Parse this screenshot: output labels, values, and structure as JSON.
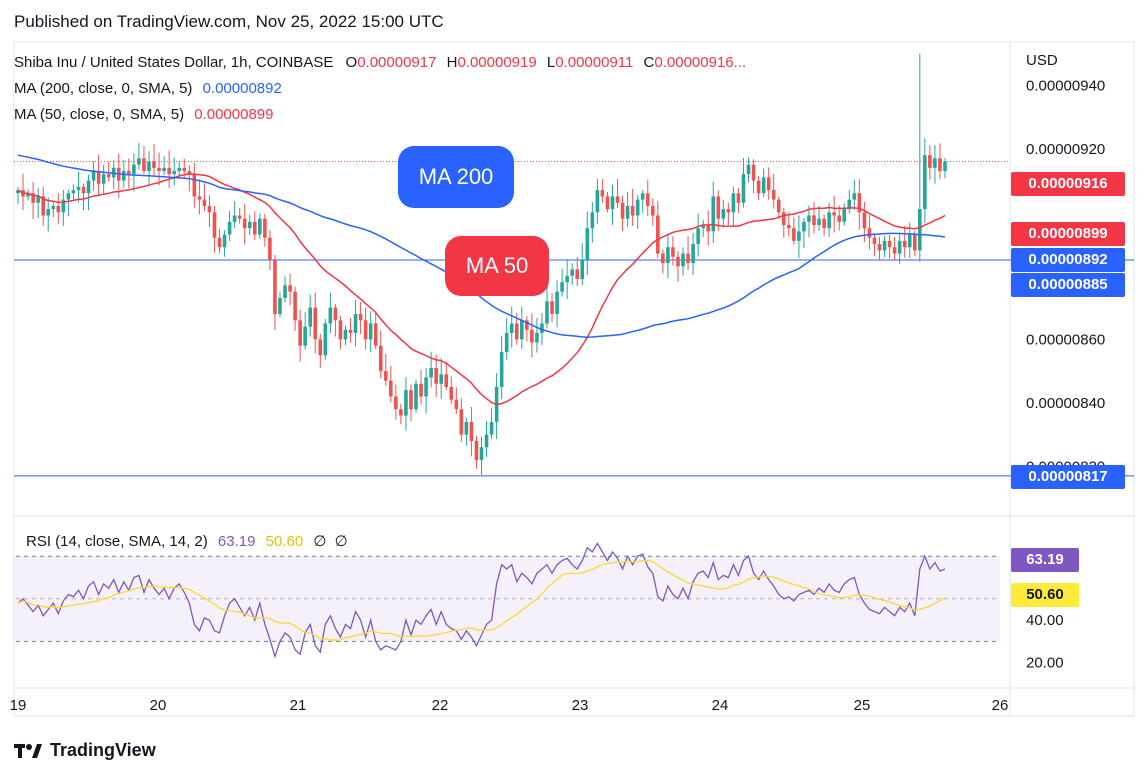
{
  "header": {
    "published": "Published on TradingView.com, Nov 25, 2022 15:00 UTC"
  },
  "legend": {
    "symbol": "Shiba Inu / United States Dollar, 1h, COINBASE",
    "o_label": "O",
    "o_value": "0.00000917",
    "h_label": "H",
    "h_value": "0.00000919",
    "l_label": "L",
    "l_value": "0.00000911",
    "c_label": "C",
    "c_value": "0.00000916...",
    "ma200_label": "MA (200, close, 0, SMA, 5)",
    "ma200_value": "0.00000892",
    "ma50_label": "MA (50, close, 0, SMA, 5)",
    "ma50_value": "0.00000899"
  },
  "rsi_legend": {
    "label": "RSI (14, close, SMA, 14, 2)",
    "rsi_value": "63.19",
    "rsi_ma_value": "50.60",
    "empty1": "∅",
    "empty2": "∅"
  },
  "axis": {
    "currency": "USD",
    "price_ticks": [
      "0.00000940",
      "0.00000920",
      "0.00000860",
      "0.00000840",
      "0.00000820"
    ],
    "rsi_ticks": [
      "40.00",
      "20.00"
    ],
    "x_ticks": [
      "19",
      "20",
      "21",
      "22",
      "23",
      "24",
      "25",
      "26"
    ]
  },
  "price_tags": {
    "current": "0.00000916",
    "ma50": "0.00000899",
    "ma200": "0.00000892",
    "hline_upper": "0.00000885",
    "hline_lower": "0.00000817"
  },
  "rsi_tags": {
    "rsi": "63.19",
    "rsi_ma": "50.60"
  },
  "annotations": {
    "ma200": "MA 200",
    "ma50": "MA 50"
  },
  "brand": {
    "name": "TradingView"
  },
  "colors": {
    "up": "#26a69a",
    "down": "#ef5350",
    "ma200": "#2962ff",
    "ma50": "#f23645",
    "rsi": "#7e57c2",
    "rsi_ma": "#fdd835",
    "hline": "#2962ff"
  },
  "chart_data": {
    "type": "candlestick",
    "symbol": "SHIBUSD",
    "timeframe": "1h",
    "x_ticks": [
      "19",
      "20",
      "21",
      "22",
      "23",
      "24",
      "25",
      "26"
    ],
    "ylim": [
      8.05e-06,
      9.53e-06
    ],
    "close": [
      9.07e-06,
      9.05e-06,
      9.06e-06,
      9.03e-06,
      9.05e-06,
      8.99e-06,
      9.01e-06,
      9.02e-06,
      9e-06,
      9.04e-06,
      9.06e-06,
      9.07e-06,
      9.08e-06,
      9.06e-06,
      9.1e-06,
      9.13e-06,
      9.09e-06,
      9.12e-06,
      9.11e-06,
      9.14e-06,
      9.1e-06,
      9.13e-06,
      9.12e-06,
      9.15e-06,
      9.17e-06,
      9.13e-06,
      9.16e-06,
      9.14e-06,
      9.13e-06,
      9.14e-06,
      9.12e-06,
      9.13e-06,
      9.14e-06,
      9.13e-06,
      9.12e-06,
      9.05e-06,
      9.04e-06,
      9.02e-06,
      9e-06,
      8.92e-06,
      8.89e-06,
      8.93e-06,
      8.97e-06,
      8.99e-06,
      8.98e-06,
      8.95e-06,
      8.97e-06,
      8.93e-06,
      8.98e-06,
      8.92e-06,
      8.85e-06,
      8.68e-06,
      8.73e-06,
      8.77e-06,
      8.75e-06,
      8.66e-06,
      8.58e-06,
      8.64e-06,
      8.7e-06,
      8.6e-06,
      8.55e-06,
      8.65e-06,
      8.7e-06,
      8.66e-06,
      8.6e-06,
      8.63e-06,
      8.62e-06,
      8.68e-06,
      8.66e-06,
      8.6e-06,
      8.65e-06,
      8.58e-06,
      8.5e-06,
      8.47e-06,
      8.42e-06,
      8.38e-06,
      8.36e-06,
      8.44e-06,
      8.38e-06,
      8.46e-06,
      8.42e-06,
      8.48e-06,
      8.51e-06,
      8.46e-06,
      8.49e-06,
      8.45e-06,
      8.41e-06,
      8.38e-06,
      8.3e-06,
      8.34e-06,
      8.28e-06,
      8.22e-06,
      8.26e-06,
      8.3e-06,
      8.34e-06,
      8.45e-06,
      8.56e-06,
      8.62e-06,
      8.65e-06,
      8.6e-06,
      8.66e-06,
      8.63e-06,
      8.59e-06,
      8.62e-06,
      8.65e-06,
      8.72e-06,
      8.68e-06,
      8.75e-06,
      8.78e-06,
      8.8e-06,
      8.82e-06,
      8.79e-06,
      8.85e-06,
      8.95e-06,
      9e-06,
      9.07e-06,
      9.05e-06,
      9.01e-06,
      9.05e-06,
      9.03e-06,
      8.98e-06,
      9.02e-06,
      8.99e-06,
      9.04e-06,
      9.06e-06,
      9.02e-06,
      8.99e-06,
      8.87e-06,
      8.84e-06,
      8.89e-06,
      8.86e-06,
      8.83e-06,
      8.87e-06,
      8.84e-06,
      8.9e-06,
      8.95e-06,
      8.96e-06,
      8.94e-06,
      9.05e-06,
      8.98e-06,
      9.01e-06,
      9e-06,
      9.06e-06,
      9.03e-06,
      9.12e-06,
      9.15e-06,
      9.1e-06,
      9.06e-06,
      9.11e-06,
      9.07e-06,
      9.04e-06,
      9e-06,
      8.96e-06,
      8.95e-06,
      8.91e-06,
      8.94e-06,
      8.97e-06,
      8.99e-06,
      8.96e-06,
      8.98e-06,
      8.95e-06,
      9e-06,
      8.99e-06,
      8.97e-06,
      9.01e-06,
      9.04e-06,
      9.06e-06,
      9e-06,
      8.95e-06,
      8.92e-06,
      8.9e-06,
      8.88e-06,
      8.91e-06,
      8.89e-06,
      8.87e-06,
      8.91e-06,
      8.89e-06,
      8.93e-06,
      8.88e-06,
      9.01e-06,
      9.18e-06,
      9.14e-06,
      9.17e-06,
      9.13e-06,
      9.16e-06
    ],
    "rsi": [
      48,
      50,
      47,
      44,
      47,
      42,
      45,
      48,
      43,
      49,
      52,
      51,
      54,
      50,
      56,
      58,
      52,
      57,
      55,
      59,
      53,
      58,
      54,
      60,
      61,
      53,
      59,
      55,
      52,
      55,
      50,
      55,
      57,
      53,
      48,
      38,
      35,
      41,
      40,
      35,
      34,
      42,
      48,
      50,
      46,
      42,
      46,
      40,
      48,
      38,
      31,
      23,
      30,
      34,
      32,
      26,
      24,
      34,
      38,
      28,
      25,
      38,
      42,
      36,
      32,
      38,
      36,
      44,
      40,
      32,
      40,
      30,
      26,
      28,
      27,
      26,
      30,
      40,
      33,
      40,
      38,
      42,
      45,
      38,
      44,
      38,
      36,
      35,
      31,
      35,
      32,
      28,
      33,
      38,
      40,
      57,
      66,
      64,
      66,
      58,
      62,
      60,
      57,
      62,
      64,
      66,
      62,
      66,
      68,
      69,
      66,
      64,
      68,
      74,
      72,
      76,
      72,
      68,
      72,
      69,
      64,
      70,
      66,
      70,
      71,
      65,
      62,
      51,
      49,
      56,
      52,
      50,
      55,
      50,
      58,
      62,
      63,
      60,
      67,
      59,
      61,
      60,
      66,
      61,
      68,
      70,
      62,
      59,
      63,
      59,
      56,
      52,
      50,
      51,
      49,
      52,
      53,
      54,
      52,
      55,
      53,
      57,
      54,
      53,
      57,
      59,
      60,
      52,
      48,
      45,
      44,
      43,
      46,
      44,
      42,
      46,
      44,
      48,
      42,
      64,
      70,
      64,
      67,
      63,
      64
    ],
    "rsi_ma_last": 50.6,
    "ma50_last": 8.99e-06,
    "ma200_last": 8.92e-06,
    "hlines": [
      8.85e-06,
      8.17e-06
    ],
    "rsi_bands": [
      70,
      30
    ]
  }
}
